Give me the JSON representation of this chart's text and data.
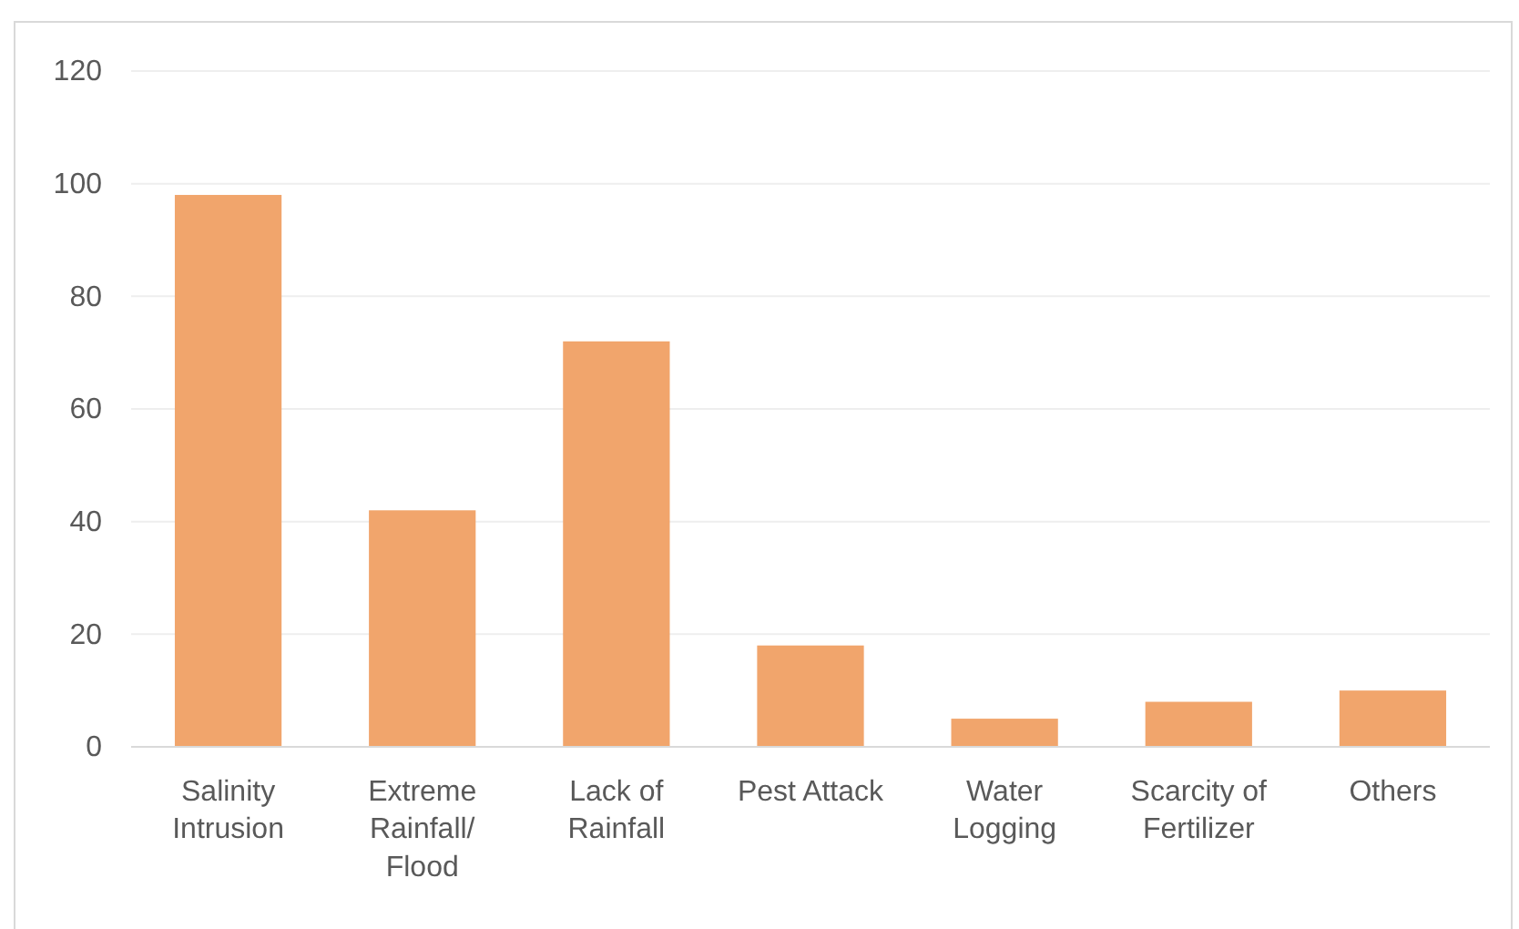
{
  "chart_data": {
    "type": "bar",
    "categories": [
      "Salinity Intrusion",
      "Extreme Rainfall/ Flood",
      "Lack of Rainfall",
      "Pest Attack",
      "Water Logging",
      "Scarcity of Fertilizer",
      "Others"
    ],
    "values": [
      98,
      42,
      72,
      18,
      5,
      8,
      10
    ],
    "color": "#f1a56c",
    "ylim": [
      0,
      120
    ],
    "yticks": [
      0,
      20,
      40,
      60,
      80,
      100,
      120
    ],
    "grid": "y"
  }
}
